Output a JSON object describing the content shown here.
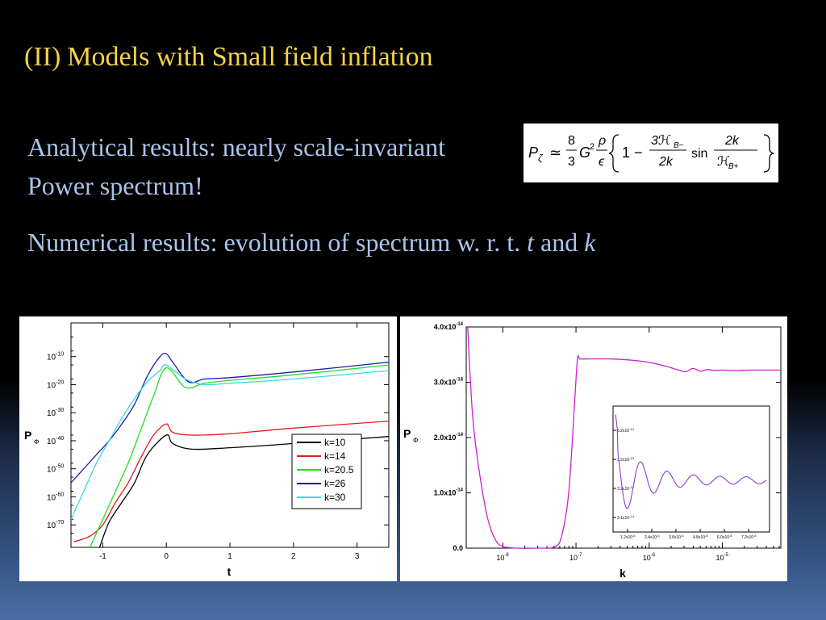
{
  "title": {
    "prefix": "(II)",
    "main": "Models with Small field inflation"
  },
  "text": {
    "analytical_line1": "Analytical results: nearly scale-invariant",
    "analytical_line2": "Power spectrum!",
    "numerical_prefix": "Numerical results: evolution of spectrum w. r. t.",
    "var_t": "t",
    "and_word": "and",
    "var_k": "k"
  },
  "formula": {
    "lhs": "P",
    "lhs_sub": "ζ",
    "approx": "≃",
    "frac1_num": "8",
    "frac1_den": "3",
    "G": "G",
    "G_exp": "2",
    "frac2_num": "ρ",
    "frac2_den": "ϵ",
    "one_minus": "1 −",
    "frac3_num": "3ℋ",
    "frac3_num_sub": "B−",
    "frac3_den": "2k",
    "sin": "sin",
    "frac4_num": "2k",
    "frac4_den": "ℋ",
    "frac4_den_sub": "B+"
  },
  "chart_data": [
    {
      "type": "line",
      "xlabel": "t",
      "ylabel": "P",
      "ylabel_sub": "Φ",
      "xlim": [
        -1.5,
        3.5
      ],
      "ylim_log10": [
        -78,
        2
      ],
      "x_ticks": [
        {
          "v": -1,
          "label": "-1"
        },
        {
          "v": 0,
          "label": "0"
        },
        {
          "v": 1,
          "label": "1"
        },
        {
          "v": 2,
          "label": "2"
        },
        {
          "v": 3,
          "label": "3"
        }
      ],
      "y_ticks": [
        {
          "v": -10,
          "label": "10",
          "exp": "-10"
        },
        {
          "v": -20,
          "label": "10",
          "exp": "-20"
        },
        {
          "v": -30,
          "label": "10",
          "exp": "-30"
        },
        {
          "v": -40,
          "label": "10",
          "exp": "-40"
        },
        {
          "v": -50,
          "label": "10",
          "exp": "-50"
        },
        {
          "v": -60,
          "label": "10",
          "exp": "-60"
        },
        {
          "v": -70,
          "label": "10",
          "exp": "-70"
        }
      ],
      "legend_position": "lower-right",
      "series": [
        {
          "name": "k=10",
          "color": "#000000",
          "x": [
            -1.05,
            -0.9,
            -0.7,
            -0.5,
            -0.3,
            0.0,
            0.1,
            0.4,
            1.0,
            2.0,
            3.5
          ],
          "values": [
            -78,
            -69,
            -62,
            -55,
            -45,
            -38,
            -41,
            -43,
            -42.5,
            -41,
            -38.5
          ]
        },
        {
          "name": "k=14",
          "color": "#e41a1c",
          "x": [
            -1.45,
            -1.2,
            -1.0,
            -0.8,
            -0.6,
            -0.4,
            -0.2,
            0.0,
            0.1,
            0.4,
            1.0,
            2.0,
            3.5
          ],
          "values": [
            -76,
            -74,
            -70,
            -62,
            -55,
            -46,
            -38,
            -34,
            -37,
            -38,
            -37.5,
            -35.5,
            -33
          ]
        },
        {
          "name": "k=20.5",
          "color": "#22dd22",
          "x": [
            -1.2,
            -1.0,
            -0.8,
            -0.6,
            -0.4,
            -0.2,
            0.0,
            0.3,
            0.6,
            1.0,
            2.0,
            3.5
          ],
          "values": [
            -78,
            -68,
            -58,
            -48,
            -36,
            -24,
            -14,
            -21,
            -19.5,
            -18.5,
            -16.5,
            -13
          ]
        },
        {
          "name": "k=26",
          "color": "#1a1ab4",
          "x": [
            -1.5,
            -1.3,
            -1.1,
            -0.9,
            -0.7,
            -0.5,
            -0.3,
            -0.1,
            0.0,
            0.1,
            0.35,
            0.6,
            1.0,
            2.0,
            3.5
          ],
          "values": [
            -55,
            -50,
            -45,
            -40,
            -34,
            -27,
            -17,
            -10,
            -9,
            -12,
            -19,
            -18,
            -17.5,
            -15.5,
            -12
          ]
        },
        {
          "name": "k=30",
          "color": "#33dddd",
          "x": [
            -1.5,
            -1.3,
            -1.1,
            -0.9,
            -0.7,
            -0.5,
            -0.3,
            -0.1,
            0.0,
            0.3,
            0.6,
            1.0,
            2.0,
            3.5
          ],
          "values": [
            -68,
            -58,
            -48,
            -40,
            -32,
            -25,
            -19,
            -15,
            -13,
            -18,
            -20,
            -19.5,
            -18,
            -15
          ]
        }
      ]
    },
    {
      "type": "line",
      "xlabel": "k",
      "ylabel": "P",
      "ylabel_sub": "Φ",
      "x_scale": "log",
      "xlim_log10": [
        -8.5,
        -4.2
      ],
      "ylim": [
        0,
        4e-14
      ],
      "x_ticks": [
        {
          "v": -8,
          "label": "10",
          "exp": "-8"
        },
        {
          "v": -7,
          "label": "10",
          "exp": "-7"
        },
        {
          "v": -6,
          "label": "10",
          "exp": "-6"
        },
        {
          "v": -5,
          "label": "10",
          "exp": "-5"
        }
      ],
      "y_ticks": [
        {
          "v": 0,
          "label": "0.0",
          "exp": ""
        },
        {
          "v": 1e-14,
          "label": "1.0x10",
          "exp": "-14"
        },
        {
          "v": 2e-14,
          "label": "2.0x10",
          "exp": "-14"
        },
        {
          "v": 3e-14,
          "label": "3.0x10",
          "exp": "-14"
        },
        {
          "v": 4e-14,
          "label": "4.0x10",
          "exp": "-14"
        }
      ],
      "series": [
        {
          "name": "P_Phi",
          "color": "#d020d0",
          "x_log10": [
            -8.48,
            -8.45,
            -8.4,
            -8.3,
            -8.2,
            -8.1,
            -8.0,
            -7.8,
            -7.5,
            -7.3,
            -7.2,
            -7.1,
            -7.02,
            -6.98,
            -6.95,
            -6.9,
            -6.5,
            -6.1,
            -5.8,
            -5.6,
            -5.5,
            -5.4,
            -5.3,
            -5.2,
            -5.1,
            -5.0,
            -4.8,
            -4.6,
            -4.2
          ],
          "values": [
            4e-14,
            3.2e-14,
            2.2e-14,
            1.2e-14,
            5e-15,
            1.5e-15,
            3e-16,
            0.0,
            0.0,
            2e-16,
            2e-15,
            1e-14,
            2.6e-14,
            3.42e-14,
            3.42e-14,
            3.42e-14,
            3.42e-14,
            3.38e-14,
            3.3e-14,
            3.22e-14,
            3.19e-14,
            3.25e-14,
            3.2e-14,
            3.23e-14,
            3.21e-14,
            3.22e-14,
            3.21e-14,
            3.22e-14,
            3.22e-14
          ]
        }
      ],
      "inset": {
        "x_ticks": [
          "1.2x10",
          "2.4x10",
          "3.6x10",
          "4.8x10",
          "6.0x10",
          "7.2x10"
        ],
        "x_tick_exp": "-6",
        "y_ticks": [
          "3.1x10",
          "3.2x10",
          "3.2x10",
          "3.2x10"
        ],
        "y_tick_exp": "-14"
      }
    }
  ]
}
